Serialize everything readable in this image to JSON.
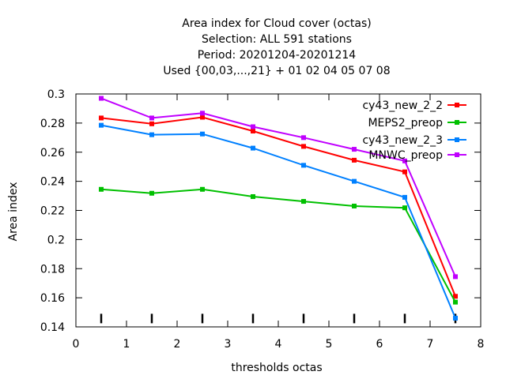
{
  "chart_data": {
    "type": "line",
    "title_lines": [
      "Area index  for Cloud cover (octas)",
      "Selection: ALL    591 stations",
      "Period: 20201204-20201214",
      "Used {00,03,...,21} + 01 02 04 05 07 08"
    ],
    "xlabel": "thresholds octas",
    "ylabel": "Area index",
    "xlim": [
      0,
      8
    ],
    "ylim": [
      0.14,
      0.3
    ],
    "x_ticks": [
      0,
      1,
      2,
      3,
      4,
      5,
      6,
      7,
      8
    ],
    "x_tick_labels": [
      "0",
      "1",
      "2",
      "3",
      "4",
      "5",
      "6",
      "7",
      "8"
    ],
    "y_ticks": [
      0.14,
      0.16,
      0.18,
      0.2,
      0.22,
      0.24,
      0.26,
      0.28,
      0.3
    ],
    "y_tick_labels": [
      "0.14",
      "0.16",
      "0.18",
      "0.2",
      "0.22",
      "0.24",
      "0.26",
      "0.28",
      "0.3"
    ],
    "grid": false,
    "legend_position": "top-right",
    "x": [
      0.5,
      1.5,
      2.5,
      3.5,
      4.5,
      5.5,
      6.5,
      7.5
    ],
    "threshold_markers_x": [
      0.5,
      1.5,
      2.5,
      3.5,
      4.5,
      5.5,
      6.5,
      7.5
    ],
    "series": [
      {
        "name": "cy43_new_2_2",
        "color": "#ff0000",
        "values": [
          0.2835,
          0.2795,
          0.284,
          0.2745,
          0.264,
          0.2545,
          0.2465,
          0.161
        ]
      },
      {
        "name": "MEPS2_preop",
        "color": "#00c000",
        "values": [
          0.2345,
          0.2318,
          0.2345,
          0.2295,
          0.2262,
          0.223,
          0.2218,
          0.157
        ]
      },
      {
        "name": "cy43_new_2_3",
        "color": "#0080ff",
        "values": [
          0.2785,
          0.272,
          0.2725,
          0.2628,
          0.251,
          0.24,
          0.229,
          0.146
        ]
      },
      {
        "name": "MNWC_preop",
        "color": "#c000ff",
        "values": [
          0.297,
          0.2835,
          0.2868,
          0.2775,
          0.27,
          0.262,
          0.254,
          0.1745
        ]
      }
    ]
  }
}
